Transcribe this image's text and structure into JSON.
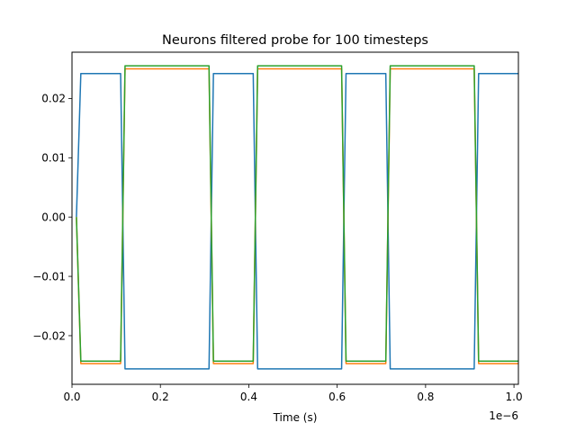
{
  "chart_data": {
    "type": "line",
    "title": "Neurons filtered probe for 100 timesteps",
    "xlabel": "Time (s)",
    "ylabel": "",
    "x_offset_label": "1e−6",
    "xlim": [
      0,
      1.01
    ],
    "ylim": [
      -0.0282,
      0.0278
    ],
    "x_ticks": [
      0.0,
      0.2,
      0.4,
      0.6,
      0.8,
      1.0
    ],
    "x_tick_labels": [
      "0.0",
      "0.2",
      "0.4",
      "0.6",
      "0.8",
      "1.0"
    ],
    "y_ticks": [
      -0.02,
      -0.01,
      0.0,
      0.01,
      0.02
    ],
    "y_tick_labels": [
      "−0.02",
      "−0.01",
      "0.00",
      "0.01",
      "0.02"
    ],
    "grid": false,
    "series": [
      {
        "color": "#1f77b4",
        "x": [
          0.01,
          0.02,
          0.11,
          0.12,
          0.31,
          0.32,
          0.41,
          0.42,
          0.61,
          0.62,
          0.71,
          0.72,
          0.91,
          0.92,
          1.01
        ],
        "y": [
          0.0,
          0.0242,
          0.0242,
          -0.0256,
          -0.0256,
          0.0242,
          0.0242,
          -0.0256,
          -0.0256,
          0.0242,
          0.0242,
          -0.0256,
          -0.0256,
          0.0242,
          0.0242
        ]
      },
      {
        "color": "#ff7f0e",
        "x": [
          0.01,
          0.02,
          0.11,
          0.12,
          0.31,
          0.32,
          0.41,
          0.42,
          0.61,
          0.62,
          0.71,
          0.72,
          0.91,
          0.92,
          1.01
        ],
        "y": [
          0.0,
          -0.0247,
          -0.0247,
          0.025,
          0.025,
          -0.0247,
          -0.0247,
          0.025,
          0.025,
          -0.0247,
          -0.0247,
          0.025,
          0.025,
          -0.0247,
          -0.0247
        ]
      },
      {
        "color": "#2ca02c",
        "x": [
          0.01,
          0.02,
          0.11,
          0.12,
          0.31,
          0.32,
          0.41,
          0.42,
          0.61,
          0.62,
          0.71,
          0.72,
          0.91,
          0.92,
          1.01
        ],
        "y": [
          0.0,
          -0.0243,
          -0.0243,
          0.0255,
          0.0255,
          -0.0243,
          -0.0243,
          0.0255,
          0.0255,
          -0.0243,
          -0.0243,
          0.0255,
          0.0255,
          -0.0243,
          -0.0243
        ]
      }
    ]
  }
}
